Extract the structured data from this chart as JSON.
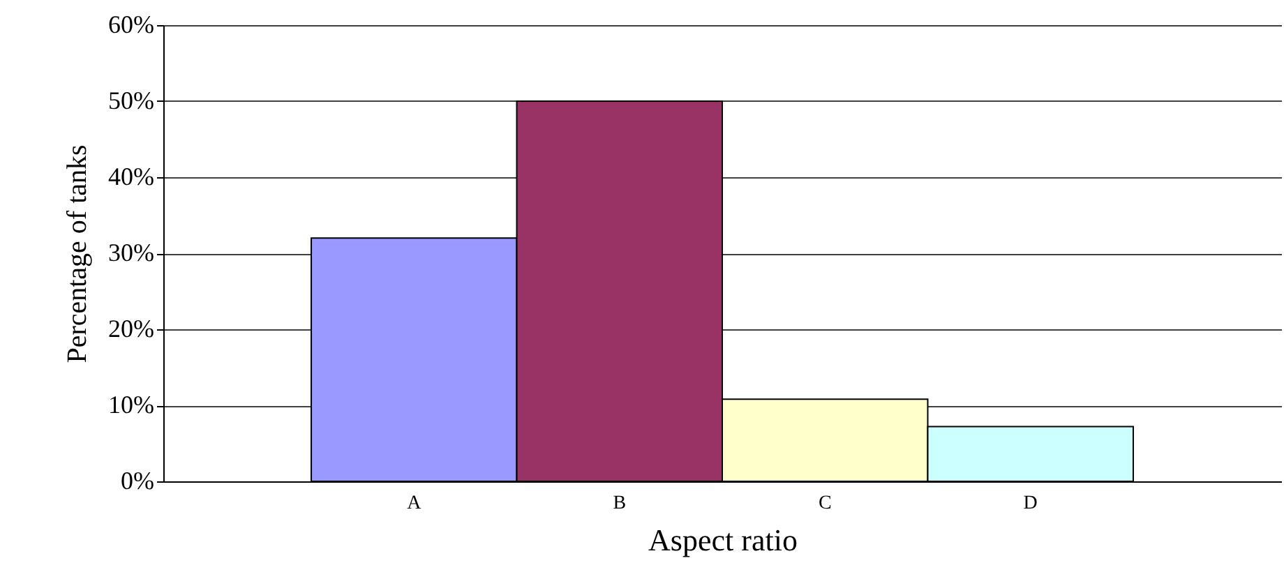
{
  "chart_data": {
    "type": "bar",
    "xlabel": "Aspect ratio",
    "ylabel": "Percentage of tanks",
    "categories": [
      "A",
      "B",
      "C",
      "D"
    ],
    "values": [
      32,
      50,
      10.8,
      7.2
    ],
    "colors": [
      "#9999ff",
      "#993366",
      "#ffffcc",
      "#ccffff"
    ],
    "ylim": [
      0,
      60
    ],
    "yticks": [
      {
        "value": 0,
        "label": "0%"
      },
      {
        "value": 10,
        "label": "10%"
      },
      {
        "value": 20,
        "label": "20%"
      },
      {
        "value": 30,
        "label": "30%"
      },
      {
        "value": 40,
        "label": "40%"
      },
      {
        "value": 50,
        "label": "50%"
      },
      {
        "value": 60,
        "label": "60%"
      }
    ],
    "grid": "y"
  }
}
